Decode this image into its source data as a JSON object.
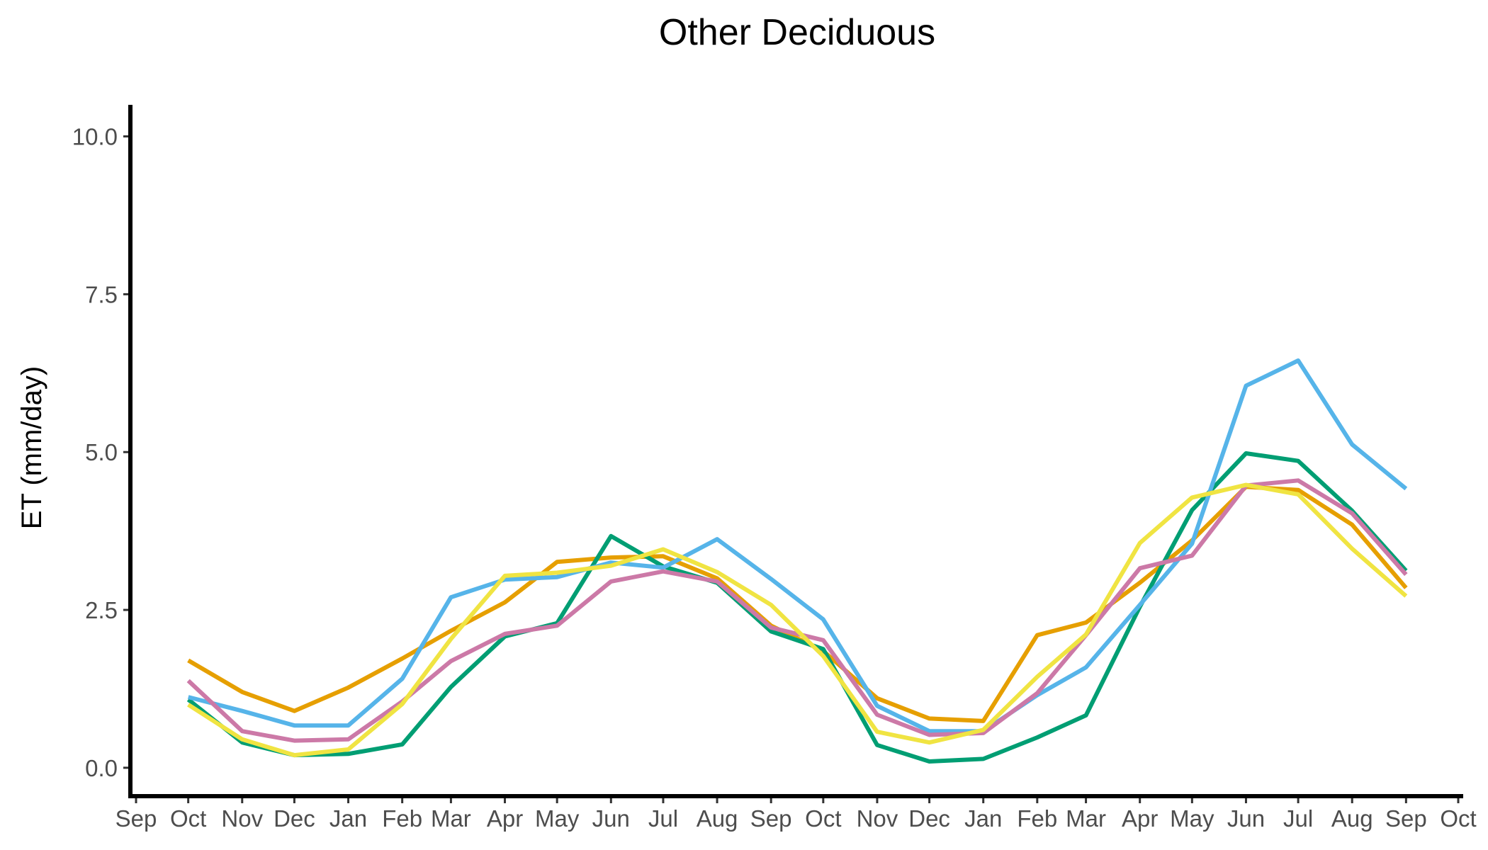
{
  "chart_data": {
    "type": "line",
    "title": "Other Deciduous",
    "ylabel": "ET (mm/day)",
    "xlabel": "",
    "ylim": [
      -0.45,
      10.5
    ],
    "yticks": [
      0,
      2.5,
      5,
      7.5,
      10
    ],
    "ytick_labels": [
      "0.0",
      "2.5",
      "5.0",
      "7.5",
      "10.0"
    ],
    "xtick_labels": [
      "Sep",
      "Oct",
      "Nov",
      "Dec",
      "Jan",
      "Feb",
      "Mar",
      "Apr",
      "May",
      "Jun",
      "Jul",
      "Aug",
      "Sep",
      "Oct",
      "Nov",
      "Dec",
      "Jan",
      "Feb",
      "Mar",
      "Apr",
      "May",
      "Jun",
      "Jul",
      "Aug",
      "Sep",
      "Oct"
    ],
    "x_dates": [
      "2012-09-01",
      "2012-10-01",
      "2012-11-01",
      "2012-12-01",
      "2013-01-01",
      "2013-02-01",
      "2013-03-01",
      "2013-04-01",
      "2013-05-01",
      "2013-06-01",
      "2013-07-01",
      "2013-08-01",
      "2013-09-01",
      "2013-10-01",
      "2013-11-01",
      "2013-12-01",
      "2014-01-01",
      "2014-02-01",
      "2014-03-01",
      "2014-04-01",
      "2014-05-01",
      "2014-06-01",
      "2014-07-01",
      "2014-08-01",
      "2014-09-01",
      "2014-10-01"
    ],
    "data_x": [
      "2012-10-01",
      "2012-11-01",
      "2012-12-01",
      "2013-01-01",
      "2013-02-01",
      "2013-03-01",
      "2013-04-01",
      "2013-05-01",
      "2013-06-01",
      "2013-07-01",
      "2013-08-01",
      "2013-09-01",
      "2013-10-01",
      "2013-11-01",
      "2013-12-01",
      "2014-01-01",
      "2014-02-01",
      "2014-03-01",
      "2014-04-01",
      "2014-05-01",
      "2014-06-01",
      "2014-07-01",
      "2014-08-01",
      "2014-09-01"
    ],
    "grid": false,
    "legend": "none",
    "series": [
      {
        "color": "#E69F00",
        "values": [
          1.7,
          1.2,
          0.9,
          1.27,
          1.73,
          2.17,
          2.62,
          3.26,
          3.33,
          3.35,
          3.0,
          2.25,
          1.85,
          1.1,
          0.78,
          0.74,
          2.1,
          2.3,
          2.93,
          3.6,
          4.45,
          4.4,
          3.85,
          2.85
        ]
      },
      {
        "color": "#009E73",
        "values": [
          1.08,
          0.4,
          0.2,
          0.22,
          0.37,
          1.28,
          2.08,
          2.29,
          3.67,
          3.19,
          2.93,
          2.16,
          1.88,
          0.36,
          0.1,
          0.14,
          0.48,
          0.83,
          2.55,
          4.08,
          4.98,
          4.86,
          4.07,
          3.12
        ]
      },
      {
        "color": "#56B4E9",
        "values": [
          1.12,
          0.9,
          0.67,
          0.67,
          1.41,
          2.7,
          2.98,
          3.02,
          3.25,
          3.17,
          3.62,
          2.99,
          2.35,
          0.98,
          0.58,
          0.58,
          1.15,
          1.59,
          2.58,
          3.55,
          6.05,
          6.45,
          5.12,
          4.42
        ]
      },
      {
        "color": "#CC79A7",
        "values": [
          1.38,
          0.58,
          0.43,
          0.45,
          1.05,
          1.69,
          2.12,
          2.25,
          2.95,
          3.11,
          2.95,
          2.22,
          2.02,
          0.84,
          0.52,
          0.55,
          1.18,
          2.1,
          3.16,
          3.36,
          4.47,
          4.55,
          4.03,
          3.06
        ]
      },
      {
        "color": "#F0E442",
        "values": [
          1.0,
          0.45,
          0.2,
          0.29,
          1.01,
          2.04,
          3.04,
          3.09,
          3.2,
          3.46,
          3.1,
          2.58,
          1.77,
          0.57,
          0.4,
          0.6,
          1.44,
          2.11,
          3.56,
          4.28,
          4.48,
          4.33,
          3.47,
          2.72
        ]
      }
    ]
  }
}
